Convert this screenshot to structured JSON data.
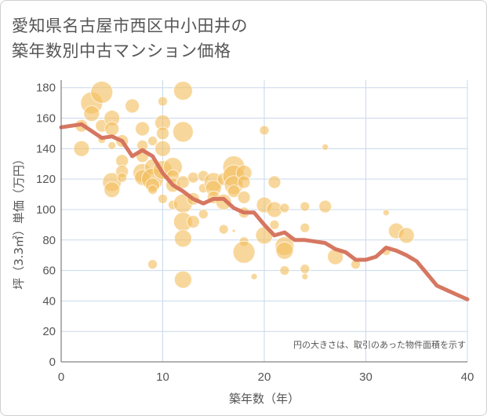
{
  "title_lines": [
    "愛知県名古屋市西区中小田井の",
    "築年数別中古マンション価格"
  ],
  "chart_data": {
    "type": "scatter",
    "title": "愛知県名古屋市西区中小田井の築年数別中古マンション価格",
    "xlabel": "築年数（年）",
    "ylabel": "坪（3.3㎡）単価（万円）",
    "xlim": [
      0,
      40
    ],
    "ylim": [
      0,
      185
    ],
    "x_ticks": [
      0,
      10,
      20,
      30,
      40
    ],
    "y_ticks": [
      0,
      20,
      40,
      60,
      80,
      100,
      120,
      140,
      160,
      180
    ],
    "grid": true,
    "note": "円の大きさは、取引のあった物件面積を示す",
    "colors": {
      "bubble": "#f3bf5f",
      "line": "#d4705a",
      "grid": "#c9d9ec"
    },
    "bubbles": [
      {
        "x": 2,
        "y": 155,
        "s": 8
      },
      {
        "x": 2,
        "y": 140,
        "s": 10
      },
      {
        "x": 3,
        "y": 170,
        "s": 14
      },
      {
        "x": 3,
        "y": 163,
        "s": 10
      },
      {
        "x": 4,
        "y": 177,
        "s": 14
      },
      {
        "x": 4,
        "y": 155,
        "s": 8
      },
      {
        "x": 4,
        "y": 146,
        "s": 5
      },
      {
        "x": 5,
        "y": 160,
        "s": 10
      },
      {
        "x": 5,
        "y": 153,
        "s": 9
      },
      {
        "x": 5,
        "y": 118,
        "s": 12
      },
      {
        "x": 5,
        "y": 113,
        "s": 10
      },
      {
        "x": 5,
        "y": 142,
        "s": 5
      },
      {
        "x": 6,
        "y": 145,
        "s": 8
      },
      {
        "x": 6,
        "y": 132,
        "s": 8
      },
      {
        "x": 6,
        "y": 125,
        "s": 8
      },
      {
        "x": 6,
        "y": 121,
        "s": 6
      },
      {
        "x": 7,
        "y": 168,
        "s": 9
      },
      {
        "x": 8,
        "y": 153,
        "s": 9
      },
      {
        "x": 8,
        "y": 142,
        "s": 7
      },
      {
        "x": 8,
        "y": 135,
        "s": 8
      },
      {
        "x": 8,
        "y": 124,
        "s": 12
      },
      {
        "x": 8,
        "y": 121,
        "s": 10
      },
      {
        "x": 9,
        "y": 145,
        "s": 6
      },
      {
        "x": 9,
        "y": 128,
        "s": 10
      },
      {
        "x": 9,
        "y": 120,
        "s": 14
      },
      {
        "x": 9,
        "y": 116,
        "s": 9
      },
      {
        "x": 9,
        "y": 113,
        "s": 6
      },
      {
        "x": 9,
        "y": 64,
        "s": 6
      },
      {
        "x": 10,
        "y": 171,
        "s": 6
      },
      {
        "x": 10,
        "y": 157,
        "s": 10
      },
      {
        "x": 10,
        "y": 150,
        "s": 8
      },
      {
        "x": 10,
        "y": 140,
        "s": 10
      },
      {
        "x": 10,
        "y": 126,
        "s": 12
      },
      {
        "x": 10,
        "y": 107,
        "s": 6
      },
      {
        "x": 11,
        "y": 128,
        "s": 12
      },
      {
        "x": 11,
        "y": 122,
        "s": 8
      },
      {
        "x": 11,
        "y": 116,
        "s": 9
      },
      {
        "x": 11,
        "y": 103,
        "s": 6
      },
      {
        "x": 12,
        "y": 178,
        "s": 12
      },
      {
        "x": 12,
        "y": 151,
        "s": 13
      },
      {
        "x": 12,
        "y": 118,
        "s": 8
      },
      {
        "x": 12,
        "y": 104,
        "s": 12
      },
      {
        "x": 12,
        "y": 92,
        "s": 12
      },
      {
        "x": 12,
        "y": 81,
        "s": 11
      },
      {
        "x": 12,
        "y": 54,
        "s": 11
      },
      {
        "x": 13,
        "y": 121,
        "s": 7
      },
      {
        "x": 13,
        "y": 107,
        "s": 8
      },
      {
        "x": 13,
        "y": 92,
        "s": 8
      },
      {
        "x": 14,
        "y": 122,
        "s": 7
      },
      {
        "x": 14,
        "y": 114,
        "s": 6
      },
      {
        "x": 14,
        "y": 97,
        "s": 6
      },
      {
        "x": 15,
        "y": 118,
        "s": 12
      },
      {
        "x": 15,
        "y": 114,
        "s": 10
      },
      {
        "x": 15,
        "y": 108,
        "s": 8
      },
      {
        "x": 16,
        "y": 120,
        "s": 8
      },
      {
        "x": 16,
        "y": 105,
        "s": 10
      },
      {
        "x": 16,
        "y": 87,
        "s": 6
      },
      {
        "x": 17,
        "y": 128,
        "s": 14
      },
      {
        "x": 17,
        "y": 122,
        "s": 14
      },
      {
        "x": 17,
        "y": 116,
        "s": 12
      },
      {
        "x": 17,
        "y": 112,
        "s": 8
      },
      {
        "x": 17,
        "y": 86,
        "s": 2
      },
      {
        "x": 18,
        "y": 124,
        "s": 10
      },
      {
        "x": 18,
        "y": 118,
        "s": 8
      },
      {
        "x": 18,
        "y": 108,
        "s": 8
      },
      {
        "x": 18,
        "y": 98,
        "s": 7
      },
      {
        "x": 18,
        "y": 79,
        "s": 6
      },
      {
        "x": 18,
        "y": 72,
        "s": 14
      },
      {
        "x": 19,
        "y": 56,
        "s": 4
      },
      {
        "x": 20,
        "y": 152,
        "s": 6
      },
      {
        "x": 20,
        "y": 103,
        "s": 10
      },
      {
        "x": 20,
        "y": 83,
        "s": 11
      },
      {
        "x": 21,
        "y": 118,
        "s": 8
      },
      {
        "x": 21,
        "y": 100,
        "s": 10
      },
      {
        "x": 21,
        "y": 90,
        "s": 6
      },
      {
        "x": 22,
        "y": 101,
        "s": 6
      },
      {
        "x": 22,
        "y": 76,
        "s": 12
      },
      {
        "x": 22,
        "y": 73,
        "s": 11
      },
      {
        "x": 22,
        "y": 60,
        "s": 6
      },
      {
        "x": 24,
        "y": 102,
        "s": 6
      },
      {
        "x": 24,
        "y": 88,
        "s": 6
      },
      {
        "x": 24,
        "y": 61,
        "s": 6
      },
      {
        "x": 24,
        "y": 56,
        "s": 4
      },
      {
        "x": 26,
        "y": 141,
        "s": 4
      },
      {
        "x": 26,
        "y": 102,
        "s": 8
      },
      {
        "x": 27,
        "y": 69,
        "s": 10
      },
      {
        "x": 29,
        "y": 64,
        "s": 6
      },
      {
        "x": 32,
        "y": 98,
        "s": 4
      },
      {
        "x": 32,
        "y": 73,
        "s": 6
      },
      {
        "x": 33,
        "y": 86,
        "s": 10
      },
      {
        "x": 34,
        "y": 83,
        "s": 10
      }
    ],
    "line": {
      "x": [
        0,
        2,
        4,
        5,
        6,
        7,
        8,
        9,
        10,
        11,
        12,
        13,
        14,
        15,
        16,
        17,
        18,
        19,
        20,
        21,
        22,
        23,
        24,
        25,
        26,
        27,
        28,
        29,
        30,
        31,
        32,
        33,
        34,
        35,
        36,
        37,
        38,
        39,
        40
      ],
      "y": [
        154,
        156,
        147,
        148,
        145,
        135,
        139,
        135,
        124,
        116,
        112,
        107,
        104,
        107,
        107,
        101,
        98,
        98,
        90,
        83,
        85,
        80,
        80,
        79,
        78,
        74,
        72,
        67,
        67,
        69,
        75,
        73,
        70,
        66,
        58,
        50,
        47,
        44,
        41
      ]
    }
  }
}
